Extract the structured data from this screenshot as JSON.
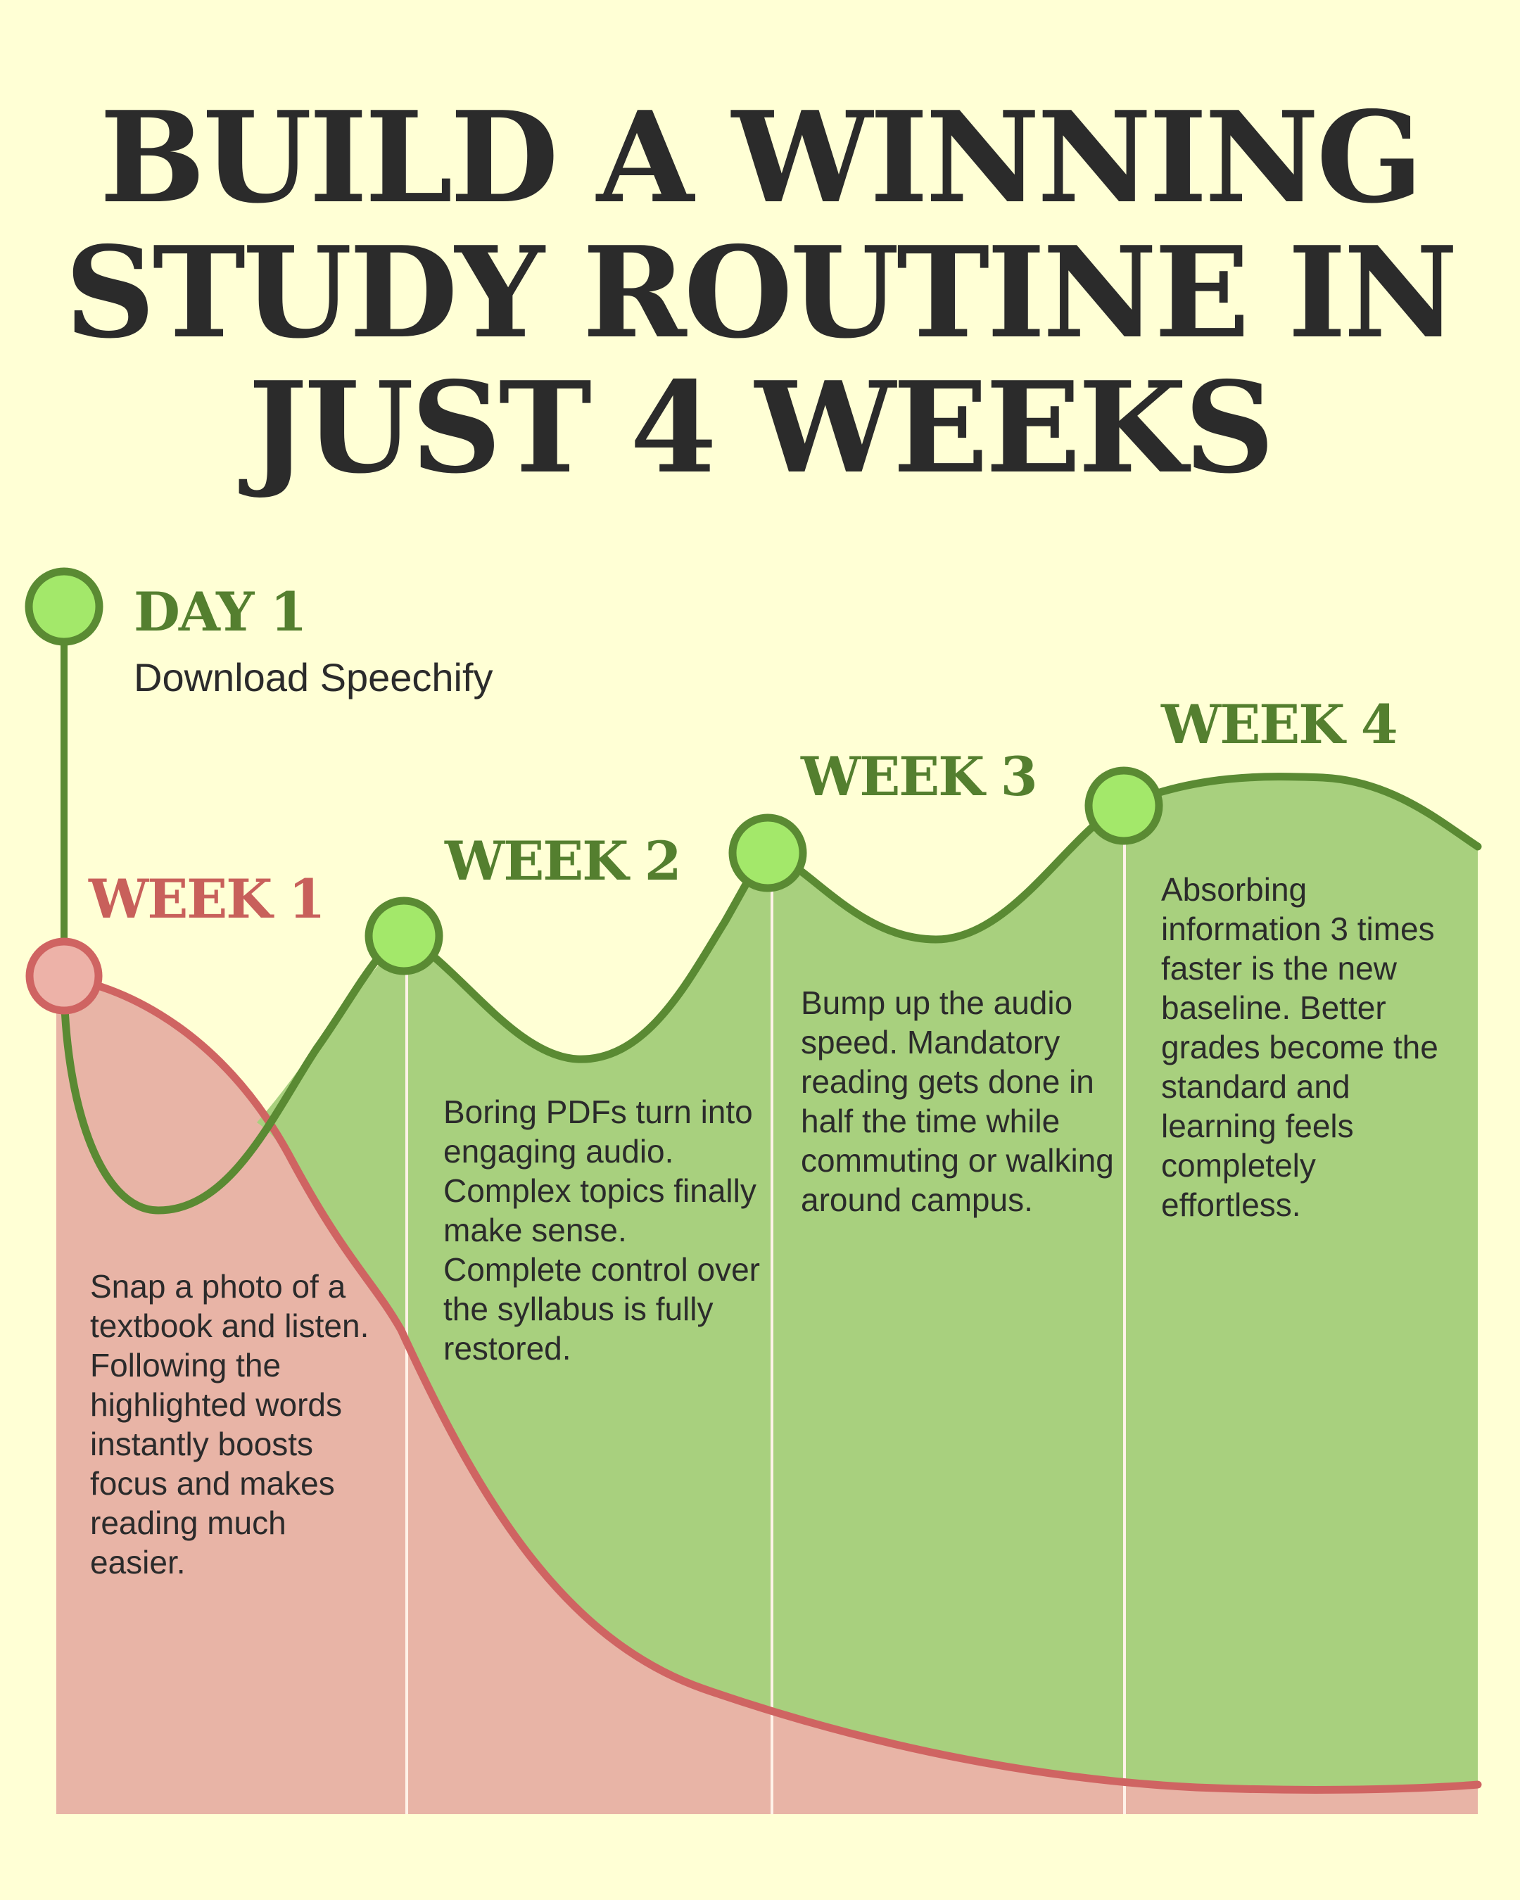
{
  "title_lines": [
    "BUILD A WINNING",
    "STUDY ROUTINE IN",
    "JUST 4 WEEKS"
  ],
  "colors": {
    "background": "#FFFFD5",
    "green_line": "#5A8A33",
    "green_fill": "#A8D07E",
    "green_marker": "#A3E86A",
    "red_line": "#CF6462",
    "red_fill": "#E8B4A6",
    "red_marker": "#EDB2A8",
    "text": "#2b2b2b"
  },
  "milestones": {
    "day1": {
      "label": "DAY 1",
      "text": "Download Speechify"
    },
    "week1": {
      "label": "WEEK 1",
      "text": "Snap a photo of a textbook and listen. Following the highlighted words instantly boosts focus and makes reading much easier."
    },
    "week2": {
      "label": "WEEK 2",
      "text": "Boring PDFs turn into engaging audio. Complex topics finally make sense. Complete control over the syllabus is fully restored."
    },
    "week3": {
      "label": "WEEK 3",
      "text": "Bump up the audio speed. Mandatory reading gets done in half the time while commuting or walking around campus."
    },
    "week4": {
      "label": "WEEK 4",
      "text": "Absorbing information 3 times faster is the new baseline. Better grades become the standard and learning feels completely effortless."
    }
  }
}
